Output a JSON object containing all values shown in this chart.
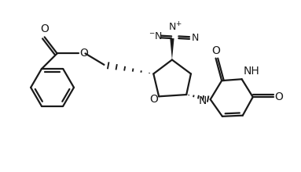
{
  "background_color": "#ffffff",
  "line_color": "#1a1a1a",
  "line_width": 1.6,
  "font_size": 9,
  "figsize": [
    3.83,
    2.2
  ],
  "dpi": 100,
  "xlim": [
    0,
    10
  ],
  "ylim": [
    0,
    5.74
  ]
}
